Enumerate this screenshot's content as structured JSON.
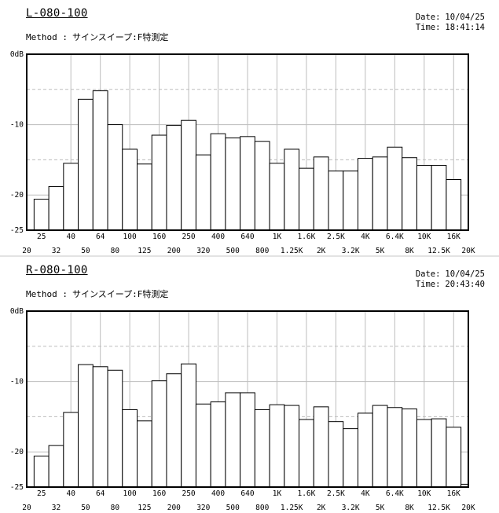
{
  "colors": {
    "background": "#ffffff",
    "grid": "#bdbdbd",
    "bar_fill": "#ffffff",
    "bar_stroke": "#000000"
  },
  "charts": [
    {
      "title": "L-080-100",
      "method_label": "Method :",
      "method_value": "サインスイープ:F特測定",
      "date_label": "Date:",
      "date": "10/04/25",
      "time_label": "Time:",
      "time": "18:41:14"
    },
    {
      "title": "R-080-100",
      "method_label": "Method :",
      "method_value": "サインスイープ:F特測定",
      "date_label": "Date:",
      "date": "10/04/25",
      "time_label": "Time:",
      "time": "20:43:40"
    }
  ],
  "chart_data": [
    {
      "type": "bar",
      "title": "L-080-100",
      "categories": [
        "20",
        "25",
        "32",
        "40",
        "50",
        "64",
        "80",
        "100",
        "125",
        "160",
        "200",
        "250",
        "320",
        "400",
        "500",
        "640",
        "800",
        "1K",
        "1.25K",
        "1.6K",
        "2K",
        "2.5K",
        "3.2K",
        "4K",
        "5K",
        "6.4K",
        "8K",
        "10K",
        "12.5K",
        "16K",
        "20K"
      ],
      "values": [
        -25,
        -20.6,
        -18.8,
        -15.5,
        -6.4,
        -5.2,
        -10,
        -13.5,
        -15.6,
        -11.5,
        -10.1,
        -9.4,
        -14.3,
        -11.3,
        -11.9,
        -11.7,
        -12.4,
        -15.5,
        -13.5,
        -16.2,
        -14.6,
        -16.6,
        -16.6,
        -14.8,
        -14.6,
        -13.2,
        -14.7,
        -15.8,
        -15.8,
        -17.8,
        -25
      ],
      "ylim": [
        -25,
        0
      ],
      "yticks": [
        "0dB",
        "-10",
        "-20",
        "-25"
      ],
      "grid": true
    },
    {
      "type": "bar",
      "title": "R-080-100",
      "categories": [
        "20",
        "25",
        "32",
        "40",
        "50",
        "64",
        "80",
        "100",
        "125",
        "160",
        "200",
        "250",
        "320",
        "400",
        "500",
        "640",
        "800",
        "1K",
        "1.25K",
        "1.6K",
        "2K",
        "2.5K",
        "3.2K",
        "4K",
        "5K",
        "6.4K",
        "8K",
        "10K",
        "12.5K",
        "16K",
        "20K"
      ],
      "values": [
        -25,
        -20.6,
        -19.1,
        -14.4,
        -7.6,
        -7.9,
        -8.4,
        -14.0,
        -15.6,
        -9.9,
        -8.9,
        -7.5,
        -13.2,
        -12.9,
        -11.6,
        -11.6,
        -14.0,
        -13.3,
        -13.4,
        -15.4,
        -13.6,
        -15.7,
        -16.7,
        -14.5,
        -13.4,
        -13.7,
        -13.9,
        -15.4,
        -15.3,
        -16.5,
        -24.6
      ],
      "ylim": [
        -25,
        0
      ],
      "yticks": [
        "0dB",
        "-10",
        "-20",
        "-25"
      ],
      "grid": true
    }
  ]
}
